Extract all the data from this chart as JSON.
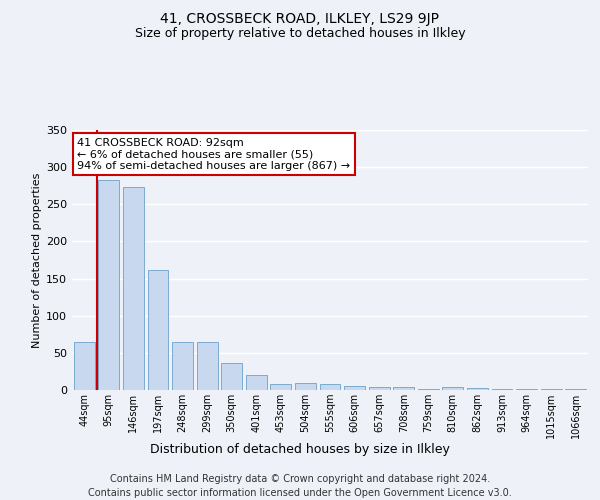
{
  "title_top": "41, CROSSBECK ROAD, ILKLEY, LS29 9JP",
  "title_sub": "Size of property relative to detached houses in Ilkley",
  "xlabel": "Distribution of detached houses by size in Ilkley",
  "ylabel": "Number of detached properties",
  "categories": [
    "44sqm",
    "95sqm",
    "146sqm",
    "197sqm",
    "248sqm",
    "299sqm",
    "350sqm",
    "401sqm",
    "453sqm",
    "504sqm",
    "555sqm",
    "606sqm",
    "657sqm",
    "708sqm",
    "759sqm",
    "810sqm",
    "862sqm",
    "913sqm",
    "964sqm",
    "1015sqm",
    "1066sqm"
  ],
  "values": [
    65,
    283,
    273,
    162,
    65,
    65,
    36,
    20,
    8,
    10,
    8,
    5,
    4,
    4,
    2,
    4,
    3,
    1,
    1,
    1,
    1
  ],
  "bar_color": "#c8d9ef",
  "bar_edge_color": "#7aabcf",
  "highlight_line_color": "#cc0000",
  "highlight_bar_index": 1,
  "annotation_text": "41 CROSSBECK ROAD: 92sqm\n← 6% of detached houses are smaller (55)\n94% of semi-detached houses are larger (867) →",
  "annotation_box_color": "#cc0000",
  "ylim": [
    0,
    350
  ],
  "yticks": [
    0,
    50,
    100,
    150,
    200,
    250,
    300,
    350
  ],
  "footer1": "Contains HM Land Registry data © Crown copyright and database right 2024.",
  "footer2": "Contains public sector information licensed under the Open Government Licence v3.0.",
  "background_color": "#eef2f8",
  "plot_background_color": "#eef2f8",
  "grid_color": "#ffffff",
  "title_fontsize": 10,
  "subtitle_fontsize": 9,
  "footer_fontsize": 7,
  "annotation_fontsize": 8,
  "ylabel_fontsize": 8,
  "xlabel_fontsize": 9,
  "xtick_fontsize": 7,
  "ytick_fontsize": 8
}
